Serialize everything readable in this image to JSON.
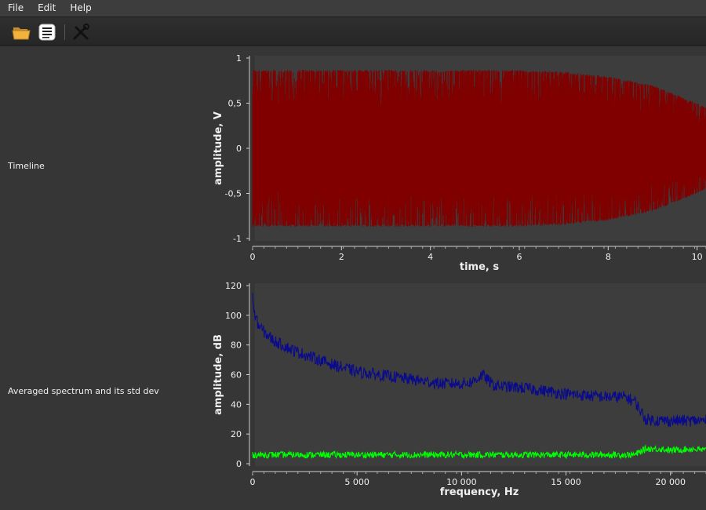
{
  "menu": [
    "File",
    "Edit",
    "Help"
  ],
  "toolbar": {
    "icons": [
      "open-folder-icon",
      "document-list-icon",
      "tools-icon"
    ]
  },
  "rows": {
    "timeline_label": "Timeline",
    "spectrum_label": "Averaged spectrum and its std dev"
  },
  "chart_data": [
    {
      "type": "line",
      "xlabel": "time, s",
      "ylabel": "amplitude, V",
      "xlim": [
        0,
        10.2
      ],
      "ylim": [
        -1,
        1
      ],
      "x_ticks": [
        0,
        2,
        4,
        6,
        8,
        10
      ],
      "x_tick_labels": [
        "0",
        "2",
        "4",
        "6",
        "8",
        "10"
      ],
      "y_ticks": [
        1,
        0.5,
        0,
        -0.5,
        -1
      ],
      "y_tick_labels": [
        "1",
        "0,5",
        "0",
        "-0,5",
        "-1"
      ],
      "series": [
        {
          "color": "#800000",
          "envelope": {
            "x": [
              0,
              2,
              4,
              6,
              7,
              8,
              9,
              10,
              10.2
            ],
            "max": [
              0.87,
              0.87,
              0.87,
              0.87,
              0.85,
              0.8,
              0.7,
              0.5,
              0.45
            ],
            "min": [
              -0.87,
              -0.87,
              -0.87,
              -0.87,
              -0.85,
              -0.8,
              -0.7,
              -0.5,
              -0.45
            ]
          }
        }
      ]
    },
    {
      "type": "line",
      "xlabel": "frequency, Hz",
      "ylabel": "amplitude, dB",
      "xlim": [
        0,
        21700
      ],
      "ylim": [
        0,
        120
      ],
      "x_ticks": [
        0,
        5000,
        10000,
        15000,
        20000
      ],
      "x_tick_labels": [
        "0",
        "5 000",
        "10 000",
        "15 000",
        "20 000"
      ],
      "y_ticks": [
        120,
        100,
        80,
        60,
        40,
        20,
        0
      ],
      "y_tick_labels": [
        "120",
        "100",
        "80",
        "60",
        "40",
        "20",
        "0"
      ],
      "series": [
        {
          "color": "#0a0a8c",
          "x": [
            0,
            100,
            300,
            600,
            1000,
            2000,
            3000,
            4000,
            5000,
            6000,
            7000,
            8000,
            9000,
            10000,
            10500,
            11000,
            11500,
            12000,
            13000,
            14000,
            15000,
            16000,
            17000,
            17800,
            18300,
            18800,
            19500,
            20000,
            21000,
            21700
          ],
          "y": [
            113,
            100,
            93,
            88,
            83,
            76,
            71,
            66,
            62,
            60,
            58,
            56,
            54,
            54,
            55,
            60,
            53,
            52,
            51,
            49,
            47,
            46,
            45,
            45,
            42,
            30,
            29,
            29,
            29,
            29
          ]
        },
        {
          "color": "#00ff00",
          "x": [
            0,
            2000,
            4000,
            6000,
            8000,
            10000,
            12000,
            14000,
            16000,
            17800,
            18300,
            18800,
            19500,
            20000,
            21000,
            21700
          ],
          "y": [
            6,
            6,
            6,
            6,
            6,
            6,
            6,
            6,
            6,
            6,
            6,
            10,
            10,
            9,
            10,
            9
          ]
        }
      ]
    }
  ]
}
